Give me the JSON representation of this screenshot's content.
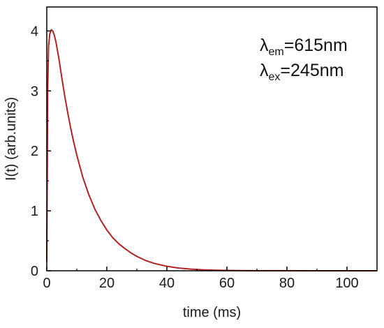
{
  "chart_data": {
    "type": "line",
    "title": "",
    "xlabel": "time (ms)",
    "ylabel": "I(t) (arb.units)",
    "xlim": [
      0,
      110
    ],
    "ylim": [
      0,
      4.4
    ],
    "x_ticks": [
      "0",
      "20",
      "40",
      "60",
      "80",
      "100"
    ],
    "y_ticks": [
      "0",
      "1",
      "2",
      "3",
      "4"
    ],
    "grid": false,
    "legend": "none",
    "annotations": [
      {
        "symbol": "λ",
        "sub": "em",
        "text": "=615nm"
      },
      {
        "symbol": "λ",
        "sub": "ex",
        "text": "=245nm"
      }
    ],
    "series": [
      {
        "color": "#b22222",
        "x": [
          0,
          0.3,
          0.6,
          1.0,
          1.5,
          2.0,
          2.5,
          3,
          4,
          5,
          6,
          7,
          8,
          9,
          10,
          12,
          14,
          16,
          18,
          20,
          22,
          24,
          26,
          28,
          30,
          33,
          36,
          40,
          44,
          48,
          52,
          56,
          60,
          65,
          70,
          80,
          90,
          100,
          110
        ],
        "y": [
          0.15,
          3.0,
          3.75,
          3.95,
          4.02,
          4.0,
          3.93,
          3.83,
          3.55,
          3.22,
          2.91,
          2.63,
          2.37,
          2.14,
          1.93,
          1.56,
          1.27,
          1.03,
          0.84,
          0.68,
          0.55,
          0.45,
          0.37,
          0.3,
          0.24,
          0.17,
          0.12,
          0.075,
          0.045,
          0.027,
          0.016,
          0.01,
          0.006,
          0.003,
          0.002,
          0.001,
          0.0,
          0.0,
          0.0
        ]
      }
    ]
  }
}
